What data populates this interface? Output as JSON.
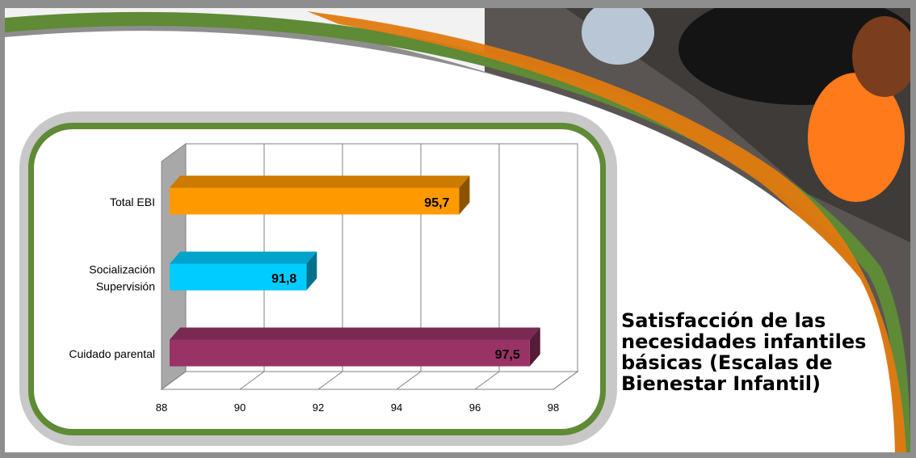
{
  "slide": {
    "title": "Satisfacción de las necesidades infantiles básicas (Escalas de Bienestar Infantil)"
  },
  "colors": {
    "green_frame": "#5f8a36",
    "orange_swoosh": "#e07a10",
    "panel_gray": "#c8c8c8"
  },
  "chart_data": {
    "type": "bar",
    "orientation": "horizontal",
    "three_d": true,
    "categories": [
      [
        "Total EBI"
      ],
      [
        "Socialización",
        "Supervisión"
      ],
      [
        "Cuidado parental"
      ]
    ],
    "values": [
      95.7,
      91.8,
      97.5
    ],
    "data_labels": [
      "95,7",
      "91,8",
      "97,5"
    ],
    "bar_colors": [
      "#ff9900",
      "#00ccff",
      "#993366"
    ],
    "xlim": [
      88,
      98
    ],
    "x_ticks": [
      "88",
      "90",
      "92",
      "94",
      "96",
      "98"
    ],
    "grid": true,
    "legend": "none"
  }
}
